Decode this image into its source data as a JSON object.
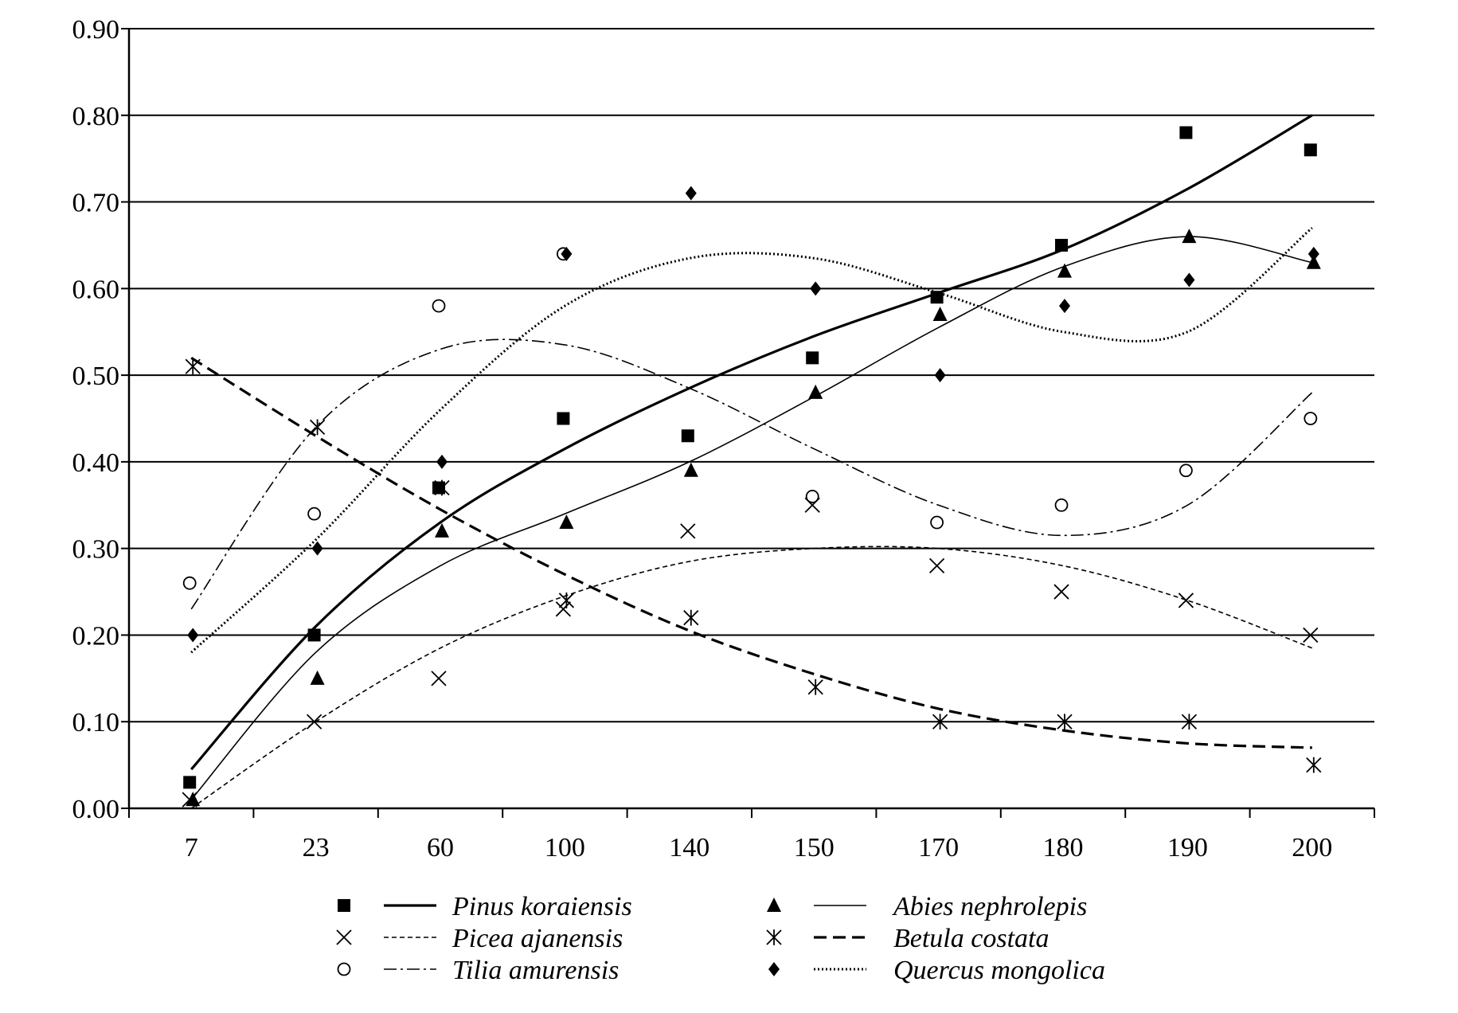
{
  "chart_data": {
    "type": "scatter",
    "categories": [
      "7",
      "23",
      "60",
      "100",
      "140",
      "150",
      "170",
      "180",
      "190",
      "200"
    ],
    "y_ticks": [
      "0.00",
      "0.10",
      "0.20",
      "0.30",
      "0.40",
      "0.50",
      "0.60",
      "0.70",
      "0.80",
      "0.90"
    ],
    "ylim": [
      0,
      0.9
    ],
    "grid": "horizontal",
    "legend_position": "bottom",
    "title": "",
    "xlabel": "",
    "ylabel": "",
    "series": [
      {
        "name": "Pinus koraiensis",
        "marker": "square",
        "line": "solid-thick",
        "values": [
          0.03,
          0.2,
          0.37,
          0.45,
          0.43,
          0.52,
          0.59,
          0.65,
          0.78,
          0.76
        ],
        "trend": [
          0.045,
          0.21,
          0.33,
          0.415,
          0.485,
          0.545,
          0.595,
          0.645,
          0.715,
          0.8
        ]
      },
      {
        "name": "Abies nephrolepis",
        "marker": "triangle",
        "line": "solid-thin",
        "values": [
          0.01,
          0.15,
          0.32,
          0.33,
          0.39,
          0.48,
          0.57,
          0.62,
          0.66,
          0.63
        ],
        "trend": [
          0.01,
          0.18,
          0.28,
          0.34,
          0.4,
          0.475,
          0.555,
          0.625,
          0.66,
          0.63
        ]
      },
      {
        "name": "Picea ajanensis",
        "marker": "x",
        "line": "dashed-fine",
        "values": [
          0.01,
          0.1,
          0.15,
          0.23,
          0.32,
          0.35,
          0.28,
          0.25,
          0.24,
          0.2
        ],
        "trend": [
          0.0,
          0.1,
          0.185,
          0.245,
          0.285,
          0.3,
          0.3,
          0.28,
          0.24,
          0.185
        ]
      },
      {
        "name": "Betula costata",
        "marker": "asterisk",
        "line": "dashed-thick",
        "values": [
          0.51,
          0.44,
          0.37,
          0.24,
          0.22,
          0.14,
          0.1,
          0.1,
          0.1,
          0.05
        ],
        "trend": [
          0.52,
          0.43,
          0.345,
          0.27,
          0.205,
          0.155,
          0.115,
          0.09,
          0.075,
          0.07
        ]
      },
      {
        "name": "Tilia amurensis",
        "marker": "circle",
        "line": "dash-dot",
        "values": [
          0.26,
          0.34,
          0.58,
          0.64,
          null,
          0.36,
          0.33,
          0.35,
          0.39,
          0.45
        ],
        "trend": [
          0.23,
          0.44,
          0.53,
          0.535,
          0.485,
          0.415,
          0.35,
          0.315,
          0.35,
          0.48
        ]
      },
      {
        "name": "Quercus mongolica",
        "marker": "diamond",
        "line": "dotted",
        "values": [
          0.2,
          0.3,
          0.4,
          0.64,
          0.71,
          0.6,
          0.5,
          0.58,
          0.61,
          0.64
        ],
        "trend": [
          0.18,
          0.31,
          0.46,
          0.58,
          0.635,
          0.635,
          0.595,
          0.55,
          0.55,
          0.67
        ]
      }
    ]
  }
}
